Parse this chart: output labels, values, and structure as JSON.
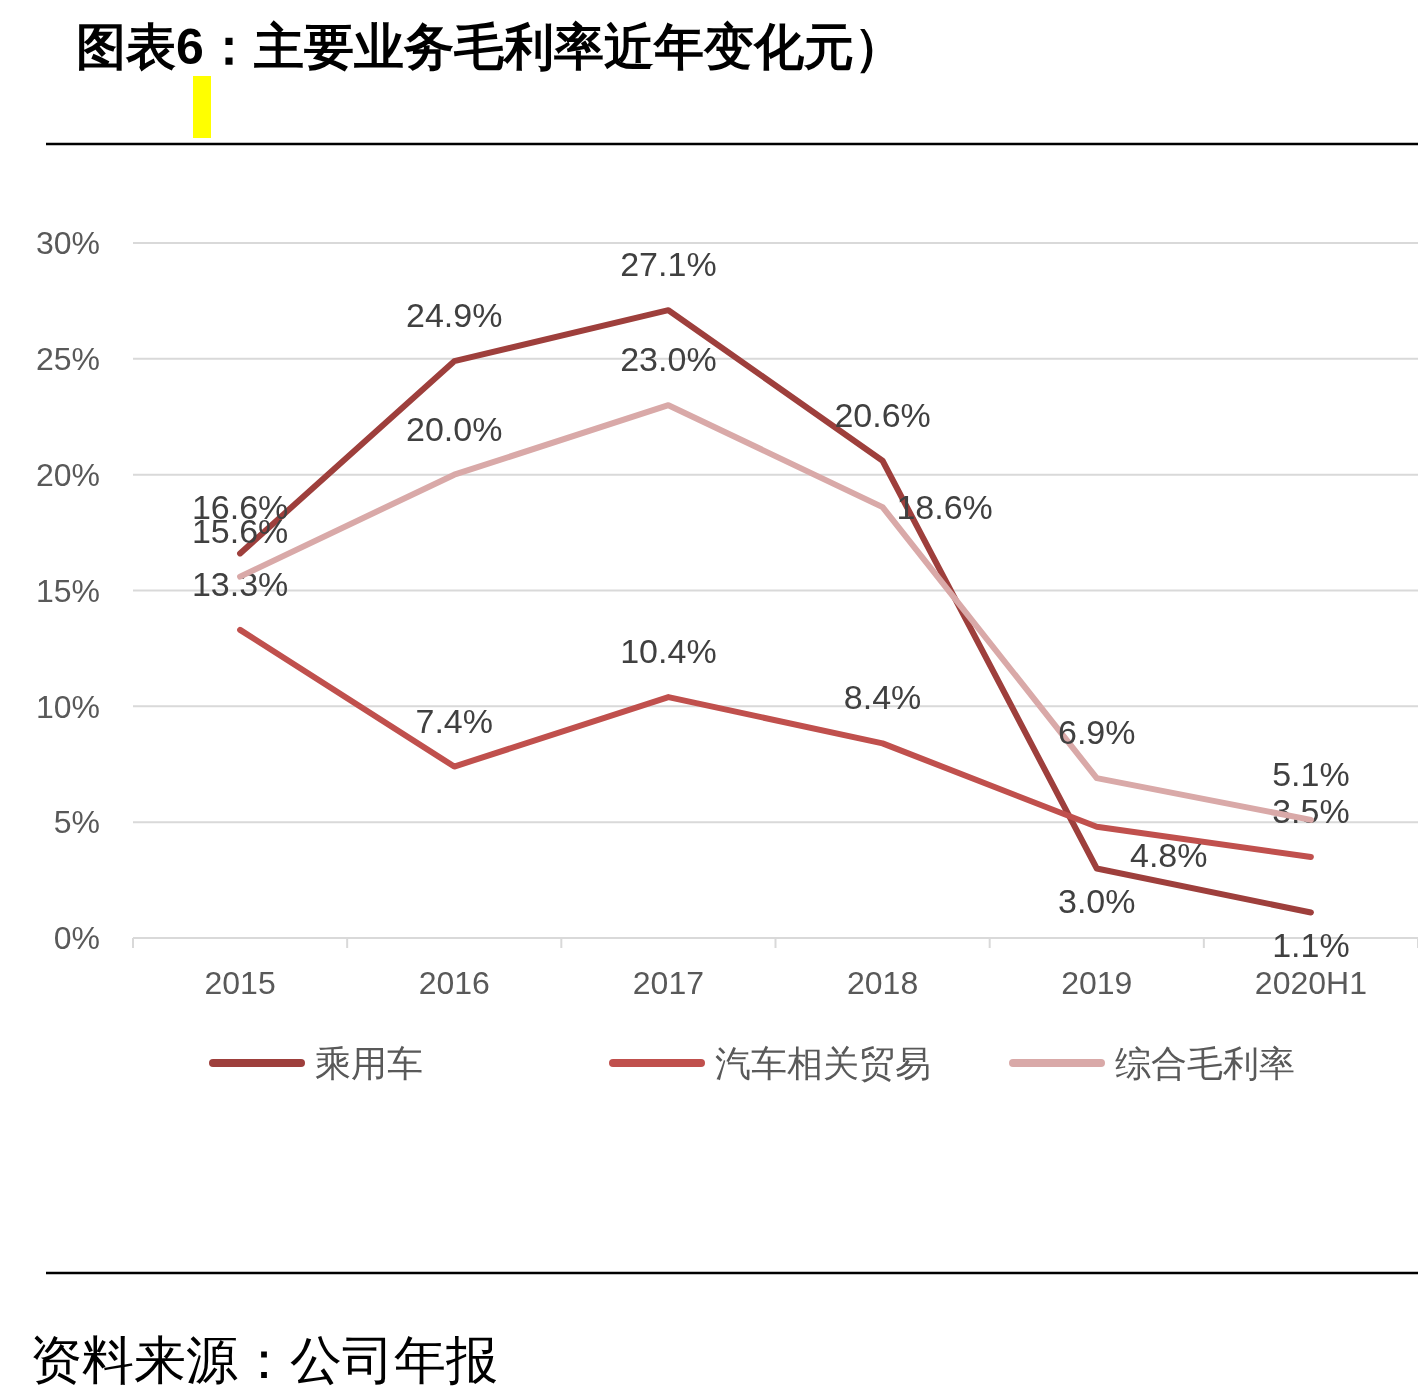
{
  "chart_data": {
    "type": "line",
    "title": "图表6：主要业务毛利率近年变化元）",
    "annotations": [
      "资料来源：公司年报"
    ],
    "categories": [
      "2015",
      "2016",
      "2017",
      "2018",
      "2019",
      "2020H1"
    ],
    "series": [
      {
        "name": "乘用车",
        "color": "#9e3f3c",
        "values": [
          16.6,
          24.9,
          27.1,
          20.6,
          3.0,
          1.1
        ],
        "value_labels": [
          "16.6%",
          "24.9%",
          "27.1%",
          "20.6%",
          "3.0%",
          "1.1%"
        ]
      },
      {
        "name": "汽车相关贸易",
        "color": "#c0504d",
        "values": [
          13.3,
          7.4,
          10.4,
          8.4,
          4.8,
          3.5
        ],
        "value_labels": [
          "13.3%",
          "7.4%",
          "10.4%",
          "8.4%",
          "4.8%",
          "3.5%"
        ]
      },
      {
        "name": "综合毛利率",
        "color": "#d9a9a8",
        "values": [
          15.6,
          20.0,
          23.0,
          18.6,
          6.9,
          5.1
        ],
        "value_labels": [
          "15.6%",
          "20.0%",
          "23.0%",
          "18.6%",
          "6.9%",
          "5.1%"
        ]
      }
    ],
    "ylim": [
      0,
      30
    ],
    "yticks": [
      {
        "value": 0,
        "label": "0%"
      },
      {
        "value": 5,
        "label": "5%"
      },
      {
        "value": 10,
        "label": "10%"
      },
      {
        "value": 15,
        "label": "15%"
      },
      {
        "value": 20,
        "label": "20%"
      },
      {
        "value": 25,
        "label": "25%"
      },
      {
        "value": 30,
        "label": "30%"
      }
    ],
    "grid": "y",
    "legend": "bottom",
    "marker": "none",
    "line_style": "solid"
  }
}
